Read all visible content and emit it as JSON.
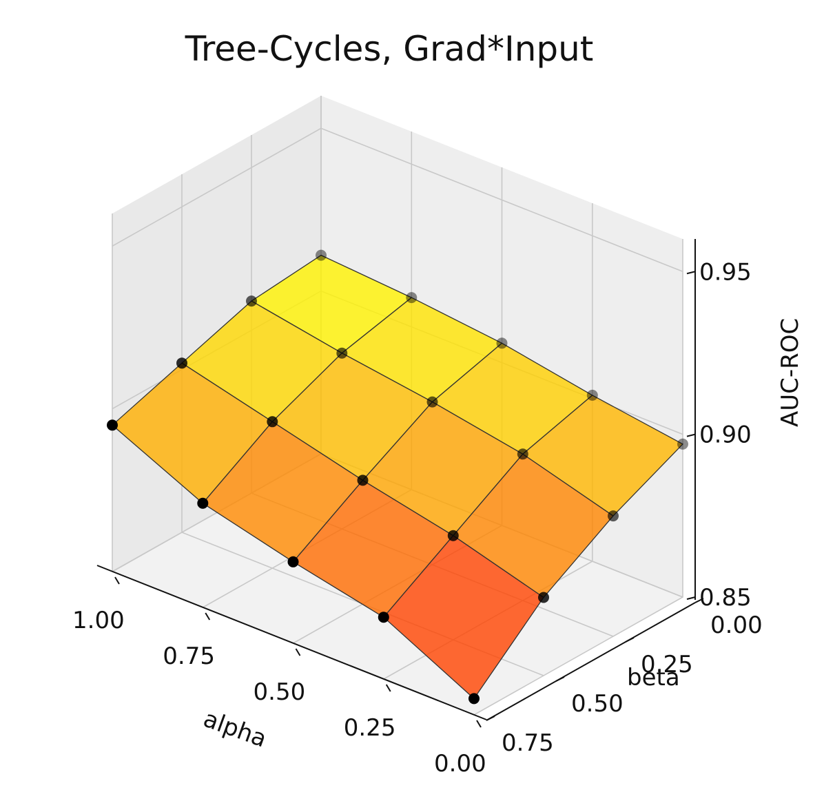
{
  "chart_data": {
    "type": "surface3d",
    "title": "Tree-Cycles, Grad*Input",
    "xlabel": "alpha",
    "ylabel": "beta",
    "zlabel": "AUC-ROC",
    "alpha": [
      1.0,
      0.75,
      0.5,
      0.25,
      0.0
    ],
    "beta": [
      0.75,
      0.5,
      0.25,
      0.0
    ],
    "alpha_ticks": [
      "1.00",
      "0.75",
      "0.50",
      "0.25",
      "0.00"
    ],
    "beta_ticks": [
      "0.00",
      "0.25",
      "0.50",
      "0.75"
    ],
    "z_ticks": [
      "0.85",
      "0.90",
      "0.95"
    ],
    "zlim": [
      0.85,
      0.96
    ],
    "auc_roc": [
      [
        0.895,
        0.902,
        0.909,
        0.911
      ],
      [
        0.882,
        0.895,
        0.904,
        0.909
      ],
      [
        0.875,
        0.888,
        0.9,
        0.906
      ],
      [
        0.869,
        0.882,
        0.895,
        0.901
      ],
      [
        0.855,
        0.874,
        0.887,
        0.897
      ]
    ],
    "colormap": "autumn",
    "colormap_stops": [
      "#ff0000",
      "#ffff00"
    ],
    "grid": true
  }
}
